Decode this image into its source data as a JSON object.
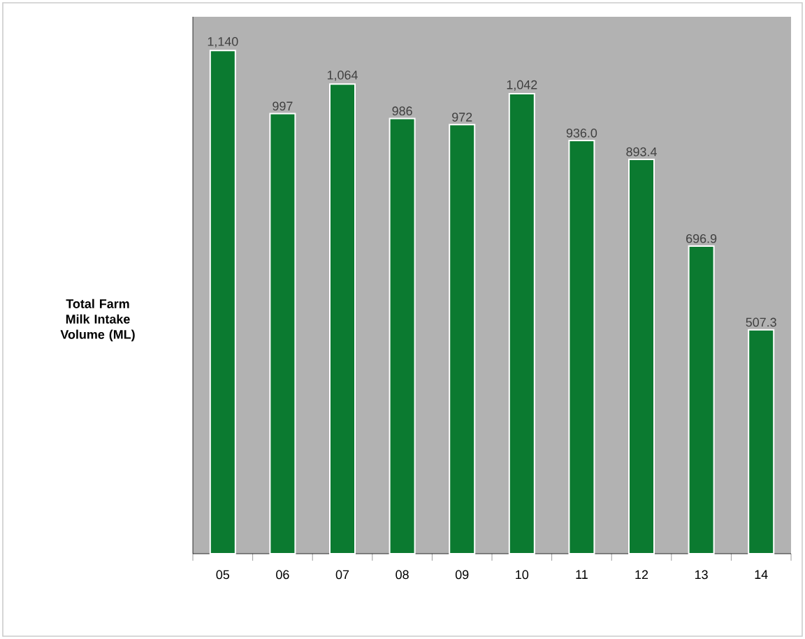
{
  "chart_data": {
    "type": "bar",
    "ylabel": "Total Farm Milk Intake Volume (ML)",
    "categories": [
      "05",
      "06",
      "07",
      "08",
      "09",
      "10",
      "11",
      "12",
      "13",
      "14"
    ],
    "values": [
      1140,
      997,
      1064,
      986,
      972,
      1042,
      936.0,
      893.4,
      696.9,
      507.3
    ],
    "value_labels": [
      "1,140",
      "997",
      "1,064",
      "986",
      "972",
      "1,042",
      "936.0",
      "893.4",
      "696.9",
      "507.3"
    ],
    "color": "#0b7a30",
    "grid": false
  }
}
